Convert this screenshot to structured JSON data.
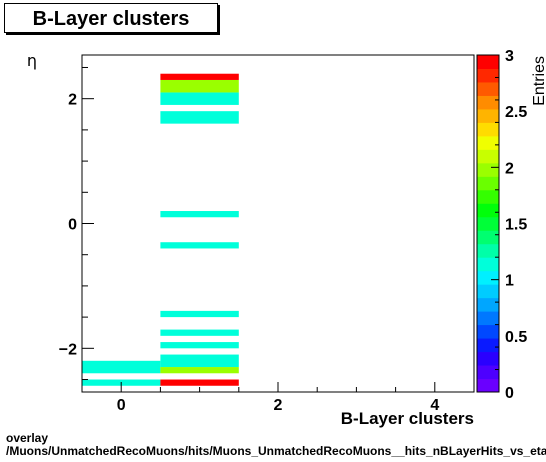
{
  "title": "B-Layer clusters",
  "footer": {
    "line1": "overlay",
    "line2": "/Muons/UnmatchedRecoMuons/hits/Muons_UnmatchedRecoMuons__hits_nBLayerHits_vs_eta"
  },
  "chart_data": {
    "type": "heatmap",
    "title": "B-Layer clusters",
    "xlabel": "B-Layer clusters",
    "ylabel": "η",
    "zlabel": "Entries",
    "xlim": [
      -0.5,
      4.5
    ],
    "ylim": [
      -2.7,
      2.7
    ],
    "zlim": [
      0,
      3
    ],
    "x_ticks": [
      0,
      2,
      4
    ],
    "y_ticks": [
      -2,
      0,
      2
    ],
    "z_ticks": [
      0,
      0.5,
      1,
      1.5,
      2,
      2.5,
      3
    ],
    "colorbar_colors": [
      "#6a00ff",
      "#4d00ff",
      "#2a00ff",
      "#0a1aff",
      "#0048ff",
      "#0078ff",
      "#00a6ff",
      "#00ccff",
      "#00f0ff",
      "#00ffda",
      "#00ffa8",
      "#00ff70",
      "#00ff38",
      "#00ff0a",
      "#34ff00",
      "#6aff00",
      "#9aff00",
      "#c8ff00",
      "#f0ff00",
      "#ffdc00",
      "#ffb400",
      "#ff8c00",
      "#ff5a00",
      "#ff2800",
      "#ff0000"
    ],
    "bins": [
      {
        "x": [
          -0.5,
          0.5
        ],
        "y": [
          -2.6,
          -2.5
        ],
        "value": 1
      },
      {
        "x": [
          -0.5,
          0.5
        ],
        "y": [
          -2.4,
          -2.2
        ],
        "value": 1
      },
      {
        "x": [
          0.5,
          1.5
        ],
        "y": [
          -2.6,
          -2.5
        ],
        "value": 3
      },
      {
        "x": [
          0.5,
          1.5
        ],
        "y": [
          -2.4,
          -2.3
        ],
        "value": 2
      },
      {
        "x": [
          0.5,
          1.5
        ],
        "y": [
          -2.3,
          -2.1
        ],
        "value": 1
      },
      {
        "x": [
          0.5,
          1.5
        ],
        "y": [
          -2.0,
          -1.9
        ],
        "value": 1
      },
      {
        "x": [
          0.5,
          1.5
        ],
        "y": [
          -1.8,
          -1.7
        ],
        "value": 1
      },
      {
        "x": [
          0.5,
          1.5
        ],
        "y": [
          -1.5,
          -1.4
        ],
        "value": 1
      },
      {
        "x": [
          0.5,
          1.5
        ],
        "y": [
          -0.4,
          -0.3
        ],
        "value": 1
      },
      {
        "x": [
          0.5,
          1.5
        ],
        "y": [
          0.1,
          0.2
        ],
        "value": 1
      },
      {
        "x": [
          0.5,
          1.5
        ],
        "y": [
          1.6,
          1.8
        ],
        "value": 1
      },
      {
        "x": [
          0.5,
          1.5
        ],
        "y": [
          1.9,
          2.1
        ],
        "value": 1
      },
      {
        "x": [
          0.5,
          1.5
        ],
        "y": [
          2.1,
          2.3
        ],
        "value": 2
      },
      {
        "x": [
          0.5,
          1.5
        ],
        "y": [
          2.3,
          2.4
        ],
        "value": 3
      }
    ]
  }
}
